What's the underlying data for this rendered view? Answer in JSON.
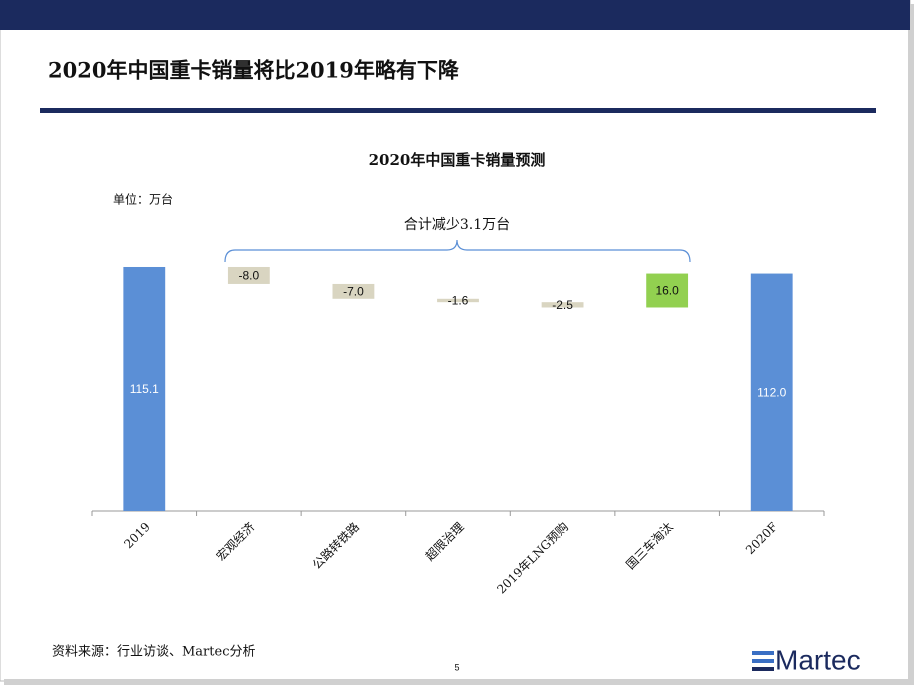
{
  "header": {
    "title": "2020年中国重卡销量将比2019年略有下降"
  },
  "chart_data": {
    "type": "waterfall",
    "title": "2020年中国重卡销量预测",
    "unit_label": "单位：万台",
    "annotation": "合计减少3.1万台",
    "categories": [
      "2019",
      "宏观经济",
      "公路转铁路",
      "超限治理",
      "2019年LNG预购",
      "国三车淘汰",
      "2020F"
    ],
    "values": [
      115.1,
      -8.0,
      -7.0,
      -1.6,
      -2.5,
      16.0,
      112.0
    ],
    "value_labels": [
      "115.1",
      "-8.0",
      "-7.0",
      "-1.6",
      "-2.5",
      "16.0",
      "112.0"
    ],
    "colors": {
      "total": "#5b8fd6",
      "decrease": "#d9d5c1",
      "increase": "#92d050"
    },
    "ylim": [
      0,
      120
    ]
  },
  "footer": {
    "source": "资料来源：行业访谈、Martec分析",
    "page_number": "5",
    "logo": "Martec"
  }
}
